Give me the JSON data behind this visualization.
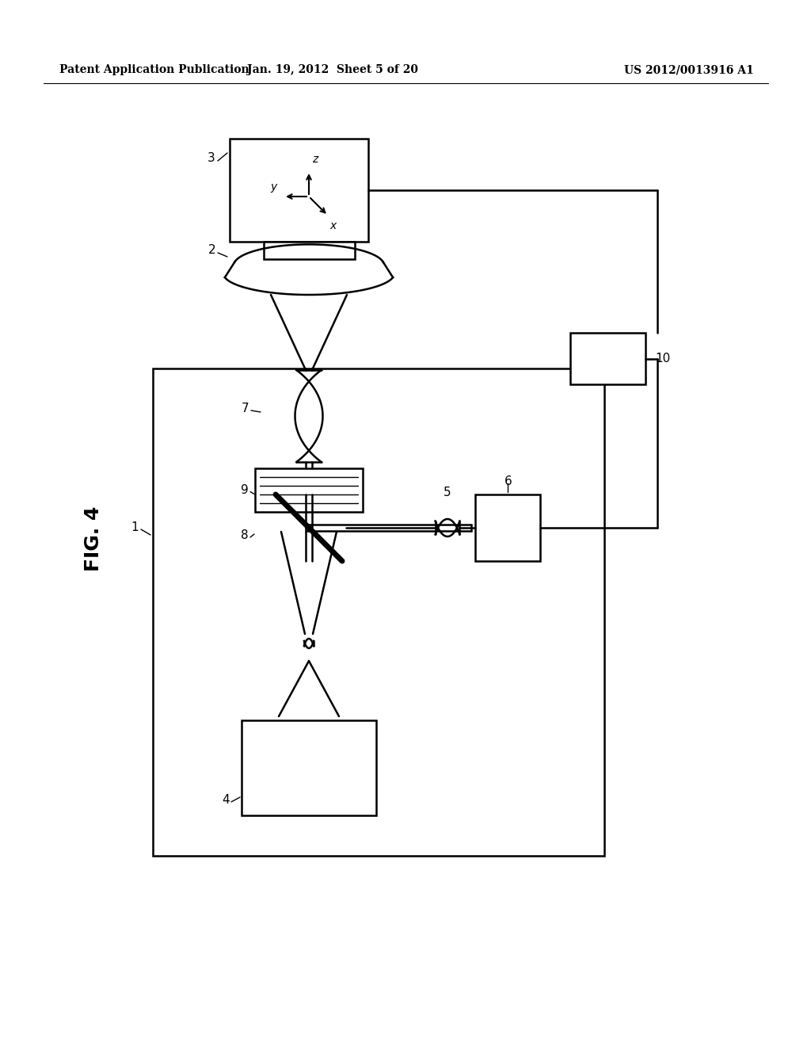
{
  "title_left": "Patent Application Publication",
  "title_mid": "Jan. 19, 2012  Sheet 5 of 20",
  "title_right": "US 2012/0013916 A1",
  "fig_label": "FIG. 4",
  "bg_color": "#ffffff",
  "line_color": "#000000"
}
